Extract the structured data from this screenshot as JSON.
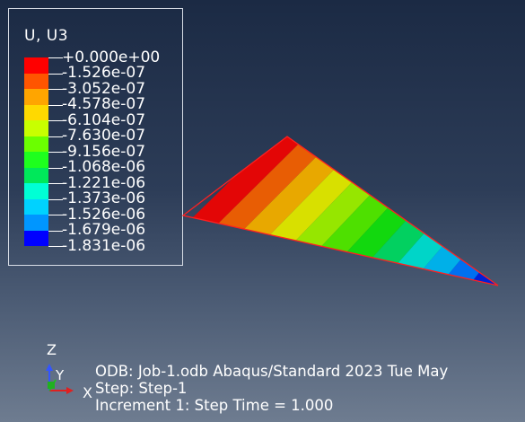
{
  "legend": {
    "title": "U, U3",
    "entries": [
      {
        "label": "+0.000e+00",
        "color": "#ff0000"
      },
      {
        "label": "-1.526e-07",
        "color": "#ff5500"
      },
      {
        "label": "-3.052e-07",
        "color": "#ffa500"
      },
      {
        "label": "-4.578e-07",
        "color": "#ffd900"
      },
      {
        "label": "-6.104e-07",
        "color": "#c8ff00"
      },
      {
        "label": "-7.630e-07",
        "color": "#6bff00"
      },
      {
        "label": "-9.156e-07",
        "color": "#1eff1e"
      },
      {
        "label": "-1.068e-06",
        "color": "#00e85a"
      },
      {
        "label": "-1.221e-06",
        "color": "#00ffd5"
      },
      {
        "label": "-1.373e-06",
        "color": "#00d2ff"
      },
      {
        "label": "-1.526e-06",
        "color": "#0096ff"
      },
      {
        "label": "-1.679e-06",
        "color": "#0046ff"
      },
      {
        "label": "-1.831e-06",
        "color": "#0000ff"
      }
    ]
  },
  "triad": {
    "z": "Z",
    "y": "Y",
    "x": "X"
  },
  "info": {
    "odb": "ODB: Job-1.odb    Abaqus/Standard 2023    Tue May",
    "step": "Step: Step-1",
    "increment": "Increment      1: Step Time =    1.000"
  },
  "band_colors": [
    "#e30606",
    "#e85d04",
    "#e8a800",
    "#d8e000",
    "#96e600",
    "#4ee000",
    "#12d80e",
    "#02d060",
    "#00d5c8",
    "#00b0e8",
    "#0070f0",
    "#0020d8"
  ]
}
